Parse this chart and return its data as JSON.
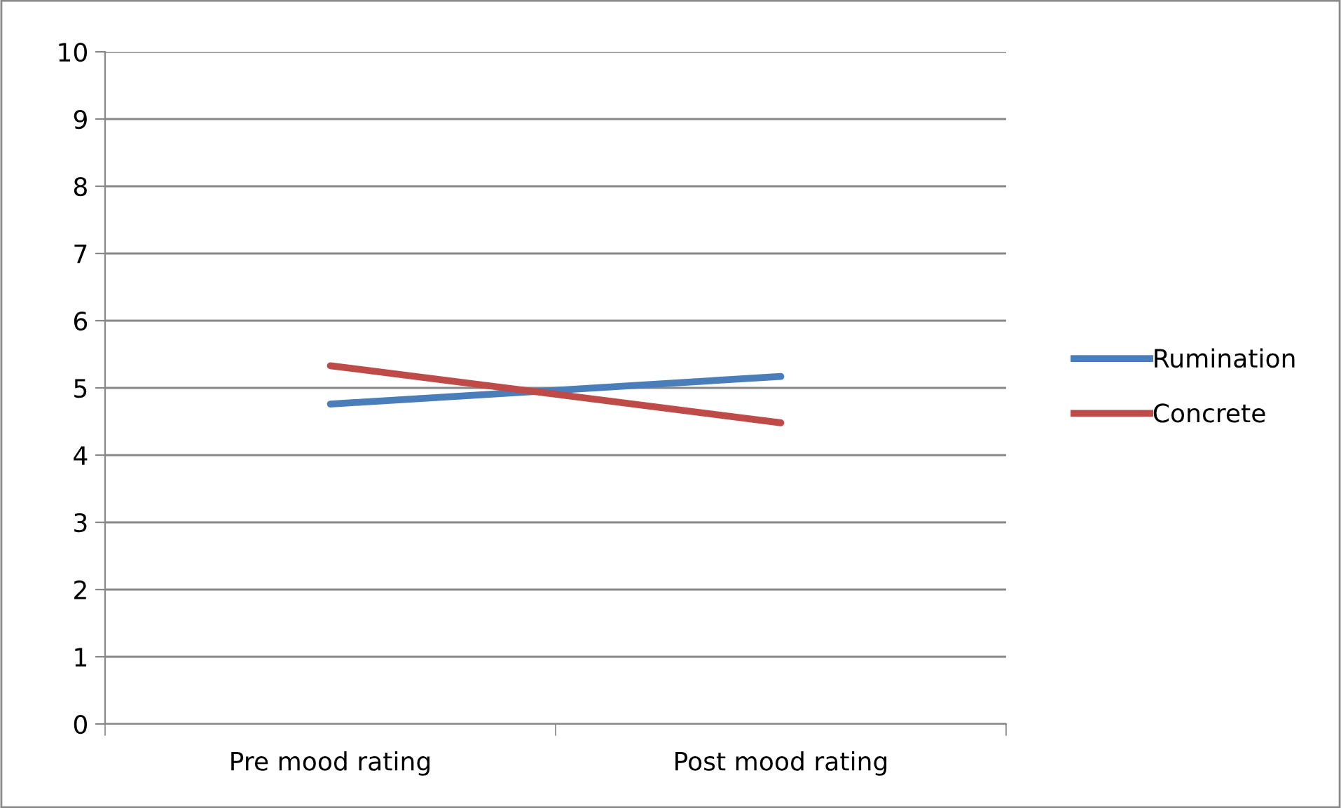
{
  "chart_data": {
    "type": "line",
    "categories": [
      "Pre mood rating",
      "Post mood rating"
    ],
    "series": [
      {
        "name": "Rumination",
        "color": "#4a7ebb",
        "values": [
          4.76,
          5.17
        ]
      },
      {
        "name": "Concrete",
        "color": "#be4b48",
        "values": [
          5.33,
          4.48
        ]
      }
    ],
    "ylim": [
      0,
      10
    ],
    "yticks": [
      0,
      1,
      2,
      3,
      4,
      5,
      6,
      7,
      8,
      9,
      10
    ],
    "grid": "y",
    "legend": "right",
    "marker": "none",
    "line_style": "solid"
  }
}
